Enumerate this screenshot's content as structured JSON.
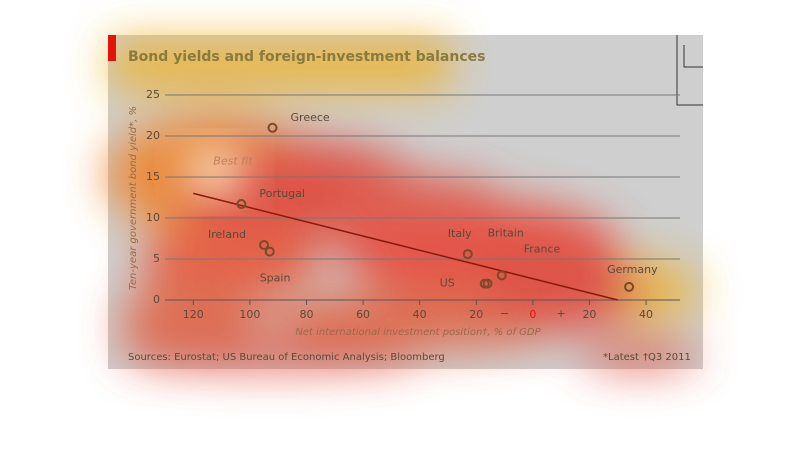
{
  "chart_data": {
    "type": "scatter",
    "title": "Bond yields and foreign-investment balances",
    "y_label": "Ten-year government bond yield*, %",
    "x_label": "Net international investment position†, % of GDP",
    "source": "Sources: Eurostat; US Bureau of Economic Analysis; Bloomberg",
    "notes": [
      "*Latest",
      "†Q3 2011"
    ],
    "sign_labels": [
      "−",
      "+"
    ],
    "labels": [
      "Greece",
      "Portugal",
      "Ireland",
      "Spain",
      "Italy",
      "Britain",
      "US",
      "France",
      "Germany"
    ],
    "x": [
      -92,
      -103,
      -95,
      -93,
      -23,
      -16,
      -17,
      -11,
      34
    ],
    "values": [
      21,
      11.7,
      6.7,
      5.9,
      5.6,
      2,
      2,
      3,
      1.6
    ],
    "color": "#7a4a2a",
    "fit_line": {
      "label": "Best fit",
      "x": [
        -120,
        30
      ],
      "values": [
        13,
        0
      ],
      "color": "#8b1a0a"
    },
    "xlim": [
      -130,
      52
    ],
    "ylim": [
      0,
      25
    ],
    "xticks": [
      {
        "value": -120,
        "label": "120"
      },
      {
        "value": -100,
        "label": "100"
      },
      {
        "value": -80,
        "label": "80"
      },
      {
        "value": -60,
        "label": "60"
      },
      {
        "value": -40,
        "label": "40"
      },
      {
        "value": -20,
        "label": "20"
      },
      0,
      20,
      40
    ],
    "yticks": [
      0,
      5,
      10,
      15,
      20,
      25
    ],
    "grid": true
  }
}
